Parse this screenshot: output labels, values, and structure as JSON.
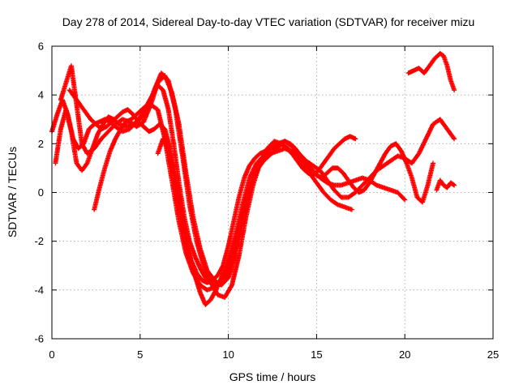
{
  "chart_data": {
    "type": "scatter",
    "title": "Day 278 of 2014, Sidereal Day-to-day VTEC variation (SDTVAR) for receiver mizu",
    "xlabel": "GPS time / hours",
    "ylabel": "SDTVAR / TECUs",
    "xlim": [
      0,
      25
    ],
    "ylim": [
      -6,
      6
    ],
    "xticks": [
      "0",
      "5",
      "10",
      "15",
      "20",
      "25"
    ],
    "yticks": [
      "-6",
      "-4",
      "-2",
      "0",
      "2",
      "4",
      "6"
    ],
    "grid": true,
    "marker": "+",
    "color": "#ff0000",
    "series": [
      {
        "x": [
          0.0,
          0.3,
          0.6,
          0.9,
          1.2,
          1.5,
          1.8,
          2.1,
          2.4,
          2.7,
          3.0,
          3.3,
          3.6,
          4.0,
          4.4,
          4.8,
          5.2,
          5.6,
          6.0,
          6.4,
          6.8,
          7.2,
          7.6,
          8.0,
          8.4,
          8.8,
          9.2,
          9.6,
          10.0,
          10.4,
          10.8,
          11.2,
          11.6,
          12.0,
          12.4,
          12.8,
          13.2,
          13.6,
          14.0,
          14.4,
          14.8,
          15.2,
          15.6,
          16.0,
          16.4,
          16.8,
          17.2,
          17.6,
          18.0,
          18.4,
          18.8,
          19.2,
          19.6,
          20.0
        ],
        "y": [
          2.5,
          3.2,
          3.8,
          3.2,
          2.2,
          1.8,
          2.0,
          2.6,
          2.8,
          2.9,
          3.0,
          2.9,
          2.7,
          2.5,
          2.6,
          2.9,
          3.3,
          3.6,
          3.4,
          2.2,
          0.5,
          -1.2,
          -2.5,
          -3.3,
          -3.8,
          -4.0,
          -3.9,
          -3.6,
          -3.0,
          -1.8,
          -0.5,
          0.6,
          1.2,
          1.5,
          1.6,
          1.7,
          1.8,
          1.7,
          1.5,
          1.2,
          0.9,
          0.6,
          0.4,
          0.3,
          0.3,
          0.4,
          0.5,
          0.6,
          0.5,
          0.3,
          0.2,
          0.1,
          0.0,
          -0.3
        ]
      },
      {
        "x": [
          0.5,
          0.8,
          1.1,
          1.4,
          1.7,
          2.0,
          2.4,
          2.8,
          3.2,
          3.6,
          4.0,
          4.4,
          4.8,
          5.2,
          5.6,
          6.0,
          6.4,
          6.8,
          7.2,
          7.6,
          8.0,
          8.4,
          8.8,
          9.2,
          9.6,
          10.0,
          10.4,
          10.8,
          11.2,
          11.6,
          12.0,
          12.4,
          12.8,
          13.2,
          13.6,
          14.0,
          14.4,
          14.8,
          15.2,
          15.6,
          16.0,
          16.4,
          16.8,
          17.2,
          17.6,
          18.0,
          18.4,
          18.8,
          19.2,
          19.6,
          20.0,
          20.4,
          20.8,
          21.2,
          21.6,
          22.0,
          22.4,
          22.8
        ],
        "y": [
          3.8,
          4.5,
          5.2,
          3.6,
          2.0,
          1.6,
          1.8,
          2.2,
          2.5,
          2.8,
          3.0,
          2.9,
          2.7,
          2.9,
          3.6,
          4.5,
          4.8,
          4.1,
          2.8,
          0.8,
          -1.0,
          -2.3,
          -3.2,
          -3.6,
          -3.8,
          -3.5,
          -2.6,
          -1.2,
          0.2,
          1.0,
          1.5,
          1.8,
          2.0,
          2.1,
          1.9,
          1.6,
          1.3,
          1.1,
          0.9,
          0.5,
          0.1,
          -0.2,
          -0.2,
          0.0,
          0.3,
          0.6,
          0.9,
          1.1,
          1.3,
          1.5,
          1.4,
          1.2,
          1.6,
          2.2,
          2.8,
          3.0,
          2.6,
          2.2
        ]
      },
      {
        "x": [
          0.2,
          0.5,
          0.8,
          1.1,
          1.4,
          1.7,
          2.0,
          2.3,
          2.6,
          2.9,
          3.2,
          3.5,
          3.8,
          4.2,
          4.6,
          5.0,
          5.4,
          5.8,
          6.2,
          6.6,
          7.0,
          7.4,
          7.8,
          8.2,
          8.6,
          9.0,
          9.4,
          9.8,
          10.2,
          10.6,
          11.0,
          11.4,
          11.8,
          12.2,
          12.6,
          13.0,
          13.4,
          13.8,
          14.2,
          14.6,
          15.0,
          15.4,
          15.8,
          16.2,
          16.6,
          17.0
        ],
        "y": [
          1.2,
          2.6,
          3.4,
          2.5,
          1.2,
          0.9,
          1.2,
          1.8,
          2.4,
          2.8,
          3.1,
          3.0,
          2.8,
          2.7,
          2.8,
          3.0,
          3.4,
          4.2,
          4.9,
          4.6,
          3.4,
          1.5,
          -0.5,
          -2.0,
          -3.0,
          -3.7,
          -4.2,
          -4.3,
          -3.8,
          -2.6,
          -1.0,
          0.3,
          1.2,
          1.8,
          2.1,
          2.0,
          1.8,
          1.5,
          1.2,
          0.8,
          0.4,
          0.0,
          -0.3,
          -0.5,
          -0.6,
          -0.7
        ]
      },
      {
        "x": [
          1.0,
          1.3,
          1.6,
          1.9,
          2.2,
          2.5,
          2.8,
          3.1,
          3.4,
          3.7,
          4.0,
          4.3,
          4.6,
          4.9,
          5.2,
          5.5,
          5.8,
          6.1,
          6.4,
          6.7,
          7.0,
          7.3,
          7.6,
          7.9,
          8.2,
          8.5,
          8.8,
          9.1,
          9.4,
          9.7,
          10.0,
          10.3,
          10.6,
          10.9,
          11.2,
          11.5,
          11.8,
          12.1,
          12.4,
          12.7,
          13.0,
          13.3,
          13.6,
          13.9,
          14.2,
          14.5,
          14.8,
          15.1,
          15.4,
          15.7,
          16.0,
          16.3,
          16.6,
          16.9,
          17.2
        ],
        "y": [
          4.2,
          3.9,
          3.6,
          3.3,
          3.0,
          2.8,
          2.6,
          2.7,
          2.9,
          3.1,
          3.3,
          3.4,
          3.2,
          2.9,
          2.7,
          2.5,
          2.6,
          2.8,
          2.6,
          1.8,
          0.6,
          -0.8,
          -2.0,
          -2.8,
          -3.3,
          -3.6,
          -3.7,
          -3.6,
          -3.4,
          -3.0,
          -2.2,
          -1.2,
          -0.2,
          0.6,
          1.1,
          1.4,
          1.6,
          1.7,
          1.8,
          1.9,
          2.0,
          1.8,
          1.6,
          1.3,
          1.0,
          0.8,
          0.7,
          0.9,
          1.2,
          1.5,
          1.8,
          2.0,
          2.2,
          2.3,
          2.2
        ]
      },
      {
        "x": [
          2.4,
          2.7,
          3.0,
          3.3,
          3.6,
          3.9,
          4.2,
          4.5,
          4.8,
          5.1,
          5.4,
          5.7,
          6.0,
          6.3,
          6.6,
          6.9,
          7.2,
          7.5,
          7.8,
          8.1,
          8.4,
          8.7,
          9.0,
          9.3,
          9.6,
          9.9,
          10.2,
          10.5,
          10.8,
          11.1,
          11.4,
          11.7,
          12.0,
          12.3,
          12.6,
          12.9,
          13.2,
          13.5,
          13.8,
          14.1,
          14.4,
          14.7,
          15.0,
          15.3,
          15.6,
          15.9,
          16.2,
          16.5,
          16.8,
          17.1,
          17.4,
          17.7,
          18.0,
          18.3,
          18.6,
          18.9,
          19.2,
          19.5,
          19.8,
          20.1,
          20.4,
          20.7,
          21.0,
          21.3,
          21.6
        ],
        "y": [
          -0.7,
          0.2,
          1.0,
          1.7,
          2.2,
          2.6,
          2.9,
          3.0,
          3.2,
          3.4,
          3.6,
          4.0,
          4.4,
          4.2,
          3.4,
          2.0,
          0.4,
          -1.0,
          -2.0,
          -2.6,
          -3.1,
          -3.5,
          -3.7,
          -3.8,
          -3.7,
          -3.4,
          -2.8,
          -2.0,
          -1.0,
          -0.2,
          0.5,
          1.0,
          1.3,
          1.5,
          1.7,
          1.9,
          2.1,
          2.0,
          1.8,
          1.5,
          1.2,
          0.9,
          0.7,
          0.6,
          0.8,
          1.0,
          1.0,
          0.8,
          0.5,
          0.2,
          0.0,
          0.1,
          0.4,
          0.8,
          1.2,
          1.6,
          1.9,
          2.0,
          1.7,
          1.2,
          0.6,
          -0.2,
          -0.4,
          0.3,
          1.2
        ]
      },
      {
        "x": [
          20.2,
          20.5,
          20.8,
          21.1,
          21.4,
          21.7,
          22.0,
          22.2,
          22.4,
          22.6,
          22.8
        ],
        "y": [
          4.9,
          5.0,
          5.1,
          4.9,
          5.2,
          5.5,
          5.7,
          5.6,
          5.2,
          4.6,
          4.2
        ]
      },
      {
        "x": [
          21.8,
          22.0,
          22.2,
          22.4,
          22.6,
          22.8
        ],
        "y": [
          0.1,
          0.5,
          0.3,
          0.2,
          0.4,
          0.3
        ]
      },
      {
        "x": [
          6.0,
          6.3,
          6.6,
          6.9,
          7.2,
          7.5,
          7.8,
          8.1,
          8.4,
          8.7,
          9.0,
          9.3,
          9.6,
          9.9,
          10.2,
          10.5,
          10.8,
          11.1,
          11.4
        ],
        "y": [
          1.6,
          2.2,
          1.8,
          0.8,
          -0.4,
          -1.5,
          -2.6,
          -3.4,
          -4.1,
          -4.6,
          -4.4,
          -4.0,
          -3.5,
          -3.0,
          -2.4,
          -1.6,
          -0.8,
          0.0,
          0.6
        ]
      }
    ]
  }
}
